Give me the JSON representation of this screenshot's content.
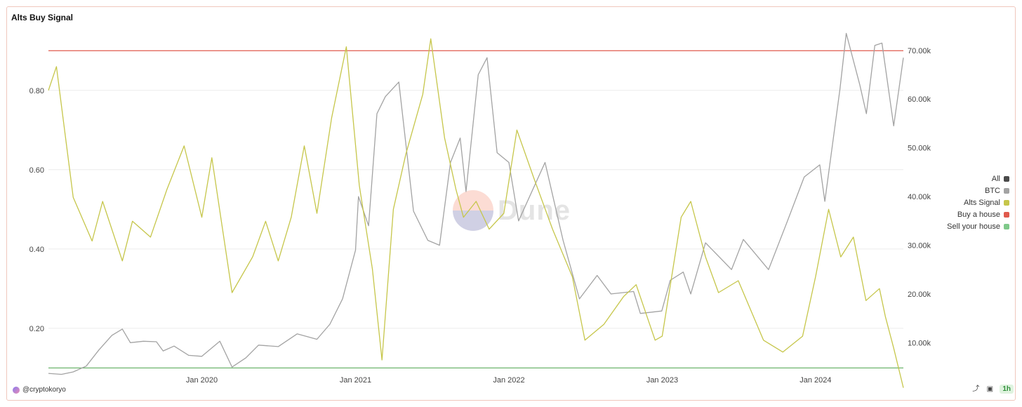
{
  "chart_data": {
    "type": "line",
    "title": "Alts Buy Signal",
    "x_ticks": [
      "Jan 2020",
      "Jan 2021",
      "Jan 2022",
      "Jan 2023",
      "Jan 2024"
    ],
    "x_range": [
      "2019-01-01",
      "2024-07-28"
    ],
    "y_left": {
      "ticks": [
        0.2,
        0.4,
        0.6,
        0.8
      ],
      "tick_labels": [
        "0.20",
        "0.40",
        "0.60",
        "0.80"
      ],
      "range": [
        0.09,
        0.95
      ]
    },
    "y_right": {
      "ticks": [
        10000,
        20000,
        30000,
        40000,
        50000,
        60000,
        70000
      ],
      "tick_labels": [
        "10.00k",
        "20.00k",
        "30.00k",
        "40.00k",
        "50.00k",
        "60.00k",
        "70.00k"
      ],
      "range": [
        4000,
        74000
      ]
    },
    "grid": true,
    "legend_position": "right",
    "series": [
      {
        "name": "BTC",
        "axis": "right",
        "color": "#a3a3a3",
        "points": [
          [
            "2019-01-01",
            3700
          ],
          [
            "2019-02-01",
            3500
          ],
          [
            "2019-03-01",
            4000
          ],
          [
            "2019-04-01",
            5200
          ],
          [
            "2019-05-01",
            8500
          ],
          [
            "2019-06-01",
            11500
          ],
          [
            "2019-06-26",
            12800
          ],
          [
            "2019-07-15",
            10000
          ],
          [
            "2019-08-15",
            10300
          ],
          [
            "2019-09-15",
            10200
          ],
          [
            "2019-10-01",
            8300
          ],
          [
            "2019-10-27",
            9300
          ],
          [
            "2019-12-01",
            7400
          ],
          [
            "2020-01-01",
            7200
          ],
          [
            "2020-02-13",
            10300
          ],
          [
            "2020-03-13",
            5000
          ],
          [
            "2020-04-15",
            6900
          ],
          [
            "2020-05-15",
            9500
          ],
          [
            "2020-07-01",
            9200
          ],
          [
            "2020-08-15",
            11800
          ],
          [
            "2020-10-01",
            10700
          ],
          [
            "2020-11-01",
            13800
          ],
          [
            "2020-12-01",
            19000
          ],
          [
            "2021-01-01",
            29000
          ],
          [
            "2021-01-08",
            40000
          ],
          [
            "2021-02-01",
            34000
          ],
          [
            "2021-02-21",
            57000
          ],
          [
            "2021-03-13",
            60500
          ],
          [
            "2021-04-14",
            63500
          ],
          [
            "2021-05-19",
            37000
          ],
          [
            "2021-06-22",
            31000
          ],
          [
            "2021-07-20",
            30000
          ],
          [
            "2021-08-15",
            47000
          ],
          [
            "2021-09-07",
            52000
          ],
          [
            "2021-09-21",
            41000
          ],
          [
            "2021-10-20",
            65000
          ],
          [
            "2021-11-10",
            68500
          ],
          [
            "2021-12-04",
            49000
          ],
          [
            "2022-01-01",
            47000
          ],
          [
            "2022-01-24",
            35000
          ],
          [
            "2022-03-28",
            47000
          ],
          [
            "2022-05-10",
            31000
          ],
          [
            "2022-06-18",
            19000
          ],
          [
            "2022-07-30",
            23800
          ],
          [
            "2022-09-01",
            20000
          ],
          [
            "2022-10-25",
            20500
          ],
          [
            "2022-11-10",
            16000
          ],
          [
            "2022-12-31",
            16500
          ],
          [
            "2023-01-20",
            22800
          ],
          [
            "2023-02-20",
            24500
          ],
          [
            "2023-03-10",
            20000
          ],
          [
            "2023-04-14",
            30500
          ],
          [
            "2023-06-15",
            25000
          ],
          [
            "2023-07-13",
            31200
          ],
          [
            "2023-09-11",
            25000
          ],
          [
            "2023-10-24",
            34500
          ],
          [
            "2023-12-05",
            44000
          ],
          [
            "2024-01-11",
            46500
          ],
          [
            "2024-01-23",
            39000
          ],
          [
            "2024-02-28",
            62000
          ],
          [
            "2024-03-14",
            73500
          ],
          [
            "2024-04-15",
            63000
          ],
          [
            "2024-05-01",
            57000
          ],
          [
            "2024-05-21",
            71000
          ],
          [
            "2024-06-07",
            71500
          ],
          [
            "2024-07-05",
            54500
          ],
          [
            "2024-07-28",
            68500
          ]
        ]
      },
      {
        "name": "Alts Signal",
        "axis": "left",
        "color": "#c6c64a",
        "points": [
          [
            "2019-01-01",
            0.8
          ],
          [
            "2019-01-20",
            0.86
          ],
          [
            "2019-03-01",
            0.53
          ],
          [
            "2019-04-15",
            0.42
          ],
          [
            "2019-05-10",
            0.52
          ],
          [
            "2019-06-26",
            0.37
          ],
          [
            "2019-07-20",
            0.47
          ],
          [
            "2019-09-01",
            0.43
          ],
          [
            "2019-10-10",
            0.55
          ],
          [
            "2019-11-20",
            0.66
          ],
          [
            "2020-01-01",
            0.48
          ],
          [
            "2020-01-25",
            0.63
          ],
          [
            "2020-03-13",
            0.29
          ],
          [
            "2020-05-01",
            0.38
          ],
          [
            "2020-06-01",
            0.47
          ],
          [
            "2020-07-01",
            0.37
          ],
          [
            "2020-08-01",
            0.48
          ],
          [
            "2020-09-01",
            0.66
          ],
          [
            "2020-10-01",
            0.49
          ],
          [
            "2020-11-05",
            0.73
          ],
          [
            "2020-12-10",
            0.91
          ],
          [
            "2021-01-10",
            0.56
          ],
          [
            "2021-02-10",
            0.35
          ],
          [
            "2021-03-05",
            0.12
          ],
          [
            "2021-04-01",
            0.5
          ],
          [
            "2021-05-01",
            0.64
          ],
          [
            "2021-06-10",
            0.79
          ],
          [
            "2021-06-29",
            0.93
          ],
          [
            "2021-08-01",
            0.68
          ],
          [
            "2021-08-28",
            0.55
          ],
          [
            "2021-09-15",
            0.48
          ],
          [
            "2021-10-15",
            0.52
          ],
          [
            "2021-11-15",
            0.45
          ],
          [
            "2021-12-20",
            0.49
          ],
          [
            "2022-01-20",
            0.7
          ],
          [
            "2022-03-01",
            0.58
          ],
          [
            "2022-04-15",
            0.45
          ],
          [
            "2022-06-01",
            0.33
          ],
          [
            "2022-07-01",
            0.17
          ],
          [
            "2022-08-15",
            0.21
          ],
          [
            "2022-10-01",
            0.28
          ],
          [
            "2022-10-31",
            0.31
          ],
          [
            "2022-12-15",
            0.17
          ],
          [
            "2023-01-01",
            0.18
          ],
          [
            "2023-02-15",
            0.48
          ],
          [
            "2023-03-10",
            0.52
          ],
          [
            "2023-04-14",
            0.38
          ],
          [
            "2023-05-15",
            0.29
          ],
          [
            "2023-07-01",
            0.32
          ],
          [
            "2023-08-30",
            0.17
          ],
          [
            "2023-10-15",
            0.14
          ],
          [
            "2023-12-01",
            0.18
          ],
          [
            "2024-01-01",
            0.33
          ],
          [
            "2024-02-01",
            0.5
          ],
          [
            "2024-03-01",
            0.38
          ],
          [
            "2024-03-31",
            0.43
          ],
          [
            "2024-04-30",
            0.27
          ],
          [
            "2024-06-01",
            0.3
          ],
          [
            "2024-06-15",
            0.23
          ],
          [
            "2024-07-05",
            0.15
          ],
          [
            "2024-07-28",
            0.05
          ]
        ]
      },
      {
        "name": "Buy a house",
        "axis": "left",
        "color": "#e05a4d",
        "value": 0.9
      },
      {
        "name": "Sell your house",
        "axis": "left",
        "color": "#6db56d",
        "value": 0.1
      }
    ],
    "legend": [
      {
        "name": "All",
        "color": "#4a4a4a"
      },
      {
        "name": "BTC",
        "color": "#a3a3a3"
      },
      {
        "name": "Alts Signal",
        "color": "#c6c64a"
      },
      {
        "name": "Buy a house",
        "color": "#e05a4d"
      },
      {
        "name": "Sell your house",
        "color": "#7fc98a"
      }
    ]
  },
  "footer": {
    "author": "@cryptokoryo",
    "refresh": "1h"
  },
  "watermark": "Dune",
  "icons": [
    "share-icon",
    "camera-icon"
  ]
}
